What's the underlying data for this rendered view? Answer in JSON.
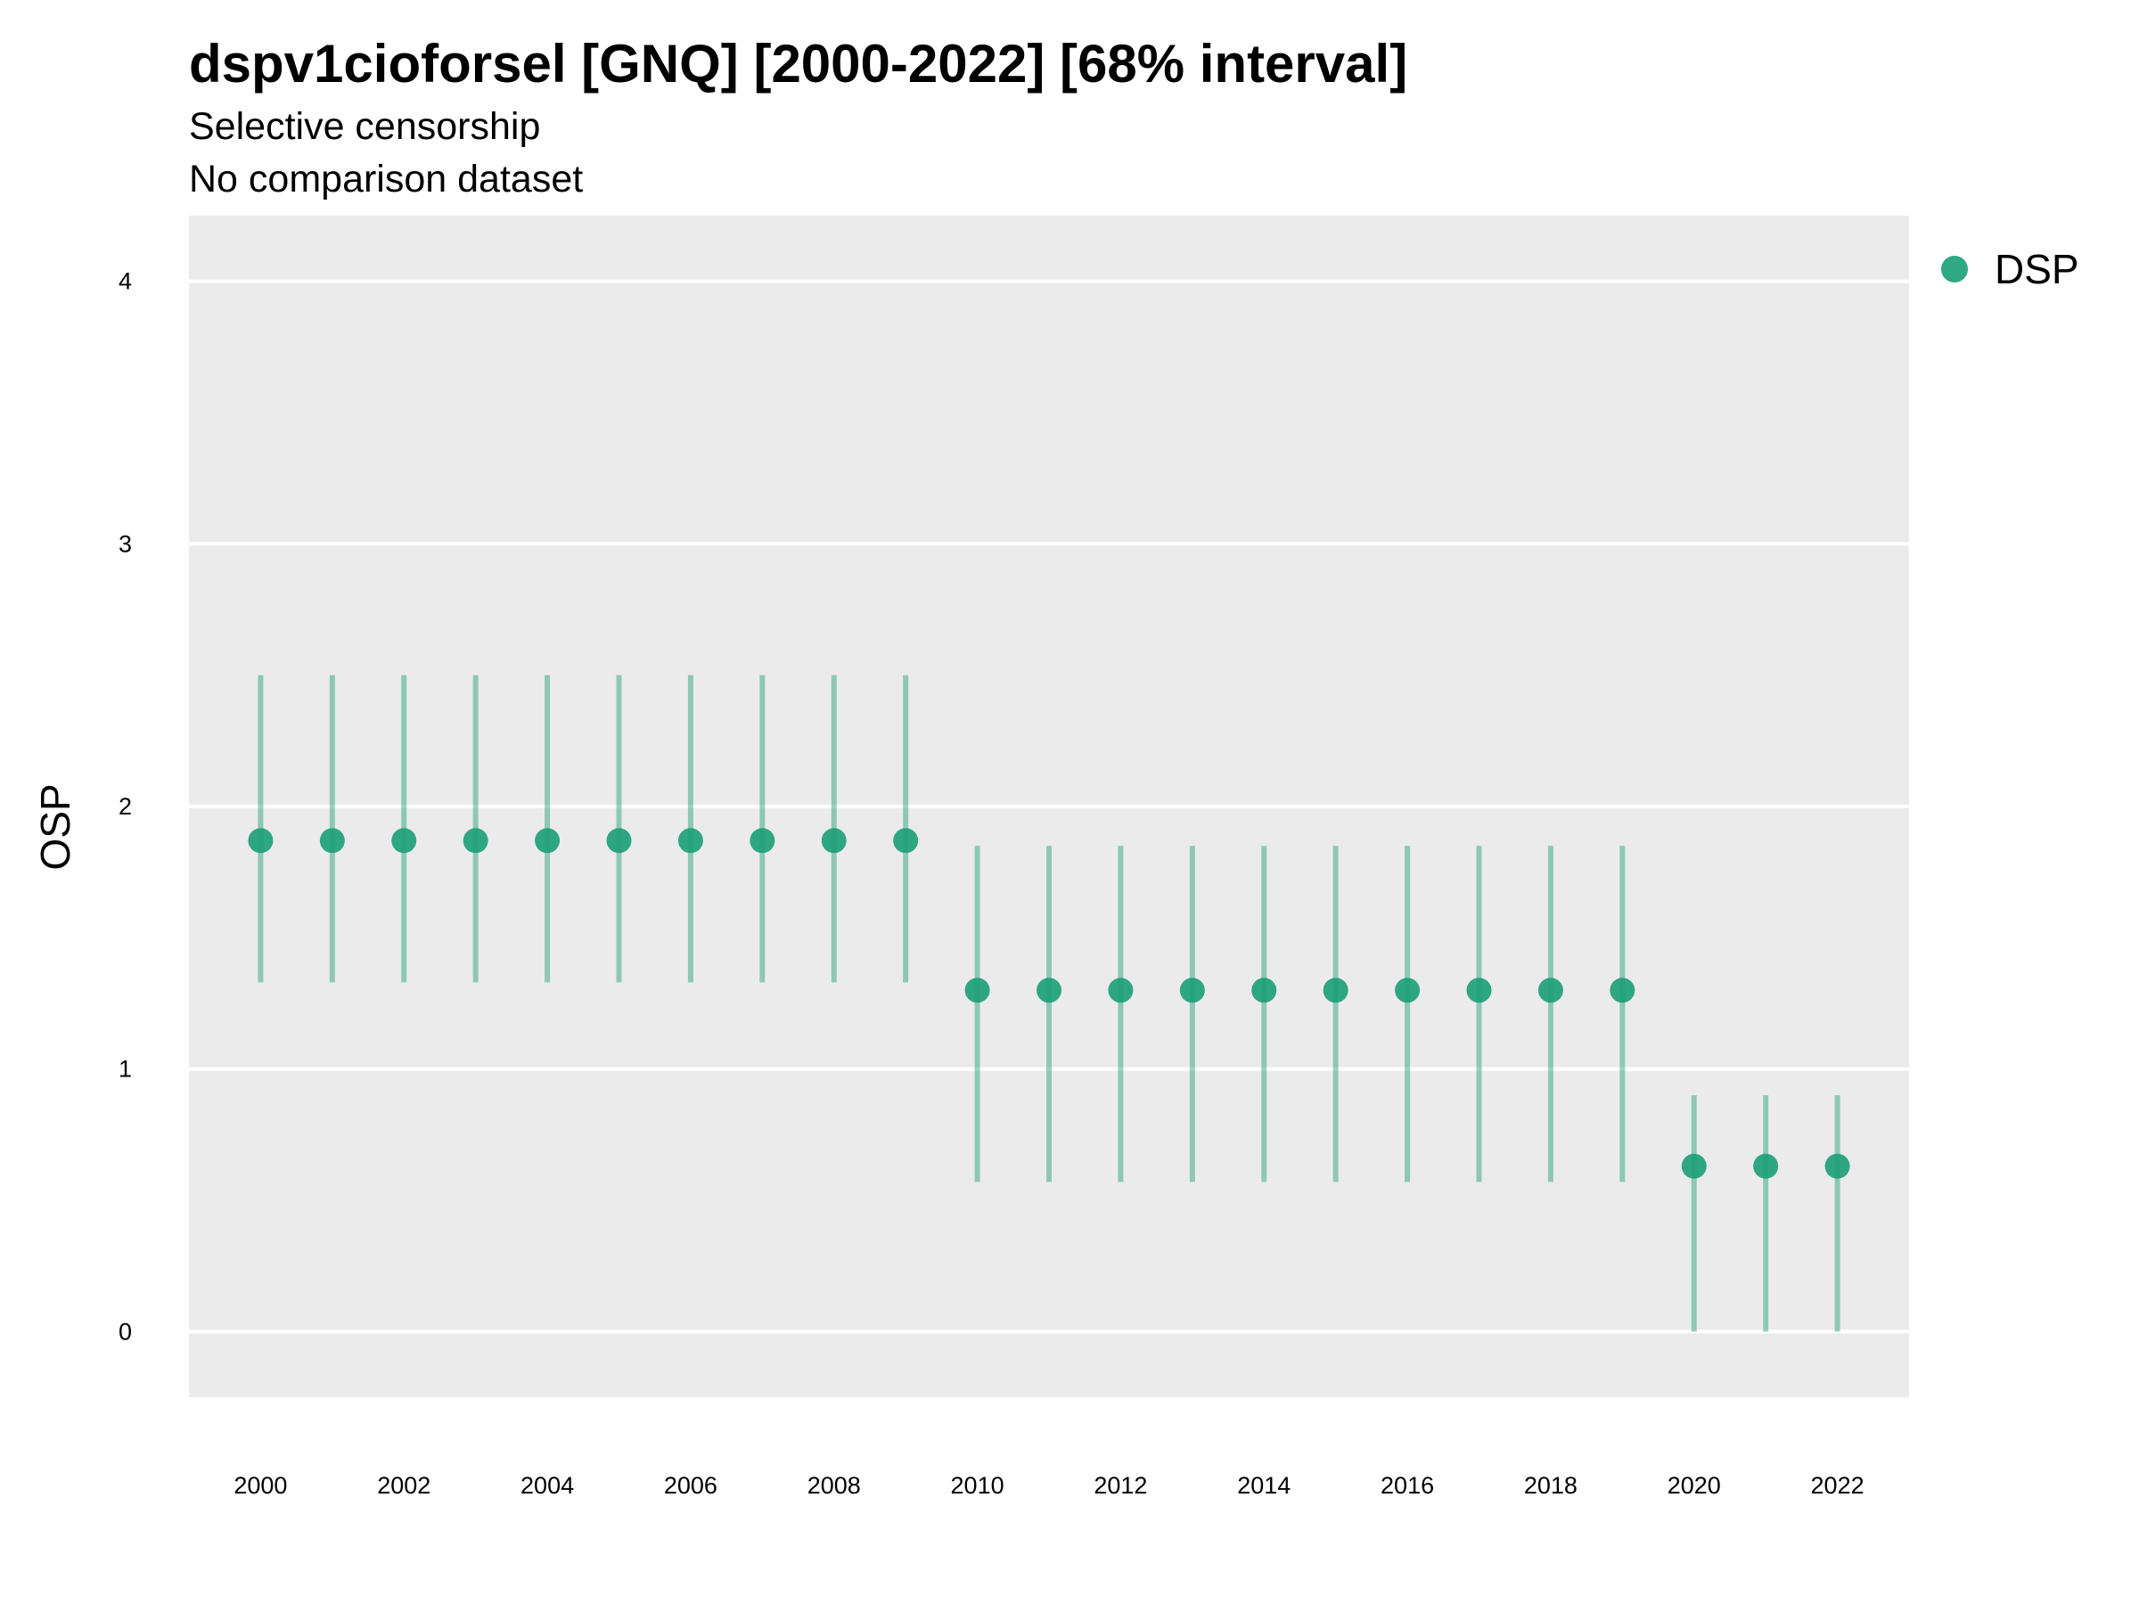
{
  "chart_data": {
    "type": "scatter",
    "title": "dspv1cioforsel [GNQ] [2000-2022] [68% interval]",
    "subtitle_lines": [
      "Selective censorship",
      "No comparison dataset"
    ],
    "xlabel": "",
    "ylabel": "OSP",
    "xlim": [
      1999,
      2023
    ],
    "ylim": [
      -0.25,
      4.25
    ],
    "x_ticks": [
      2000,
      2002,
      2004,
      2006,
      2008,
      2010,
      2012,
      2014,
      2016,
      2018,
      2020,
      2022
    ],
    "y_ticks": [
      0,
      1,
      2,
      3,
      4
    ],
    "grid": true,
    "legend_position": "right",
    "series": [
      {
        "name": "DSP",
        "color": "#1b9e77",
        "points": [
          {
            "x": 2000,
            "y": 1.87,
            "low": 1.33,
            "high": 2.5
          },
          {
            "x": 2001,
            "y": 1.87,
            "low": 1.33,
            "high": 2.5
          },
          {
            "x": 2002,
            "y": 1.87,
            "low": 1.33,
            "high": 2.5
          },
          {
            "x": 2003,
            "y": 1.87,
            "low": 1.33,
            "high": 2.5
          },
          {
            "x": 2004,
            "y": 1.87,
            "low": 1.33,
            "high": 2.5
          },
          {
            "x": 2005,
            "y": 1.87,
            "low": 1.33,
            "high": 2.5
          },
          {
            "x": 2006,
            "y": 1.87,
            "low": 1.33,
            "high": 2.5
          },
          {
            "x": 2007,
            "y": 1.87,
            "low": 1.33,
            "high": 2.5
          },
          {
            "x": 2008,
            "y": 1.87,
            "low": 1.33,
            "high": 2.5
          },
          {
            "x": 2009,
            "y": 1.87,
            "low": 1.33,
            "high": 2.5
          },
          {
            "x": 2010,
            "y": 1.3,
            "low": 0.57,
            "high": 1.85
          },
          {
            "x": 2011,
            "y": 1.3,
            "low": 0.57,
            "high": 1.85
          },
          {
            "x": 2012,
            "y": 1.3,
            "low": 0.57,
            "high": 1.85
          },
          {
            "x": 2013,
            "y": 1.3,
            "low": 0.57,
            "high": 1.85
          },
          {
            "x": 2014,
            "y": 1.3,
            "low": 0.57,
            "high": 1.85
          },
          {
            "x": 2015,
            "y": 1.3,
            "low": 0.57,
            "high": 1.85
          },
          {
            "x": 2016,
            "y": 1.3,
            "low": 0.57,
            "high": 1.85
          },
          {
            "x": 2017,
            "y": 1.3,
            "low": 0.57,
            "high": 1.85
          },
          {
            "x": 2018,
            "y": 1.3,
            "low": 0.57,
            "high": 1.85
          },
          {
            "x": 2019,
            "y": 1.3,
            "low": 0.57,
            "high": 1.85
          },
          {
            "x": 2020,
            "y": 0.63,
            "low": 0.0,
            "high": 0.9
          },
          {
            "x": 2021,
            "y": 0.63,
            "low": 0.0,
            "high": 0.9
          },
          {
            "x": 2022,
            "y": 0.63,
            "low": 0.0,
            "high": 0.9
          }
        ]
      }
    ]
  }
}
